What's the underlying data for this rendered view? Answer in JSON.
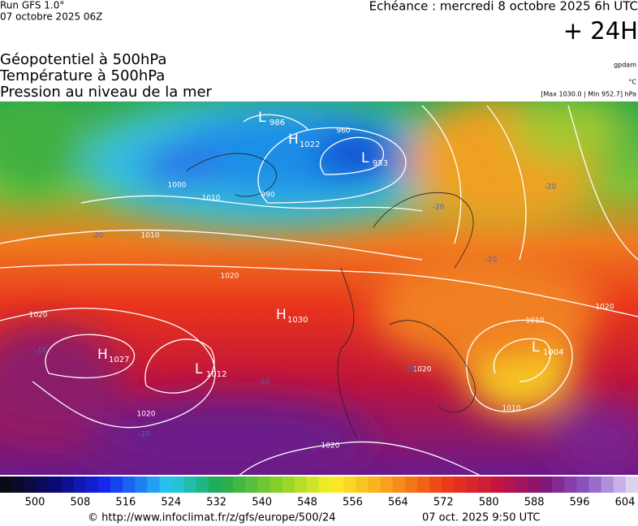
{
  "header": {
    "run": "Run GFS 1.0°",
    "date": "07 octobre 2025 06Z",
    "echeance": "Echéance : mercredi 8 octobre 2025 6h UTC",
    "lead": "+ 24H"
  },
  "fields": [
    "Géopotentiel à 500hPa",
    "Température à 500hPa",
    "Pression au niveau de la mer"
  ],
  "units": {
    "geopotential": "gpdam",
    "temperature": "°C",
    "pressure": "[Max 1030.0 | Min 952.7] hPa"
  },
  "pressure_centers": [
    {
      "kind": "L",
      "value": 986
    },
    {
      "kind": "H",
      "value": 1022
    },
    {
      "kind": "L",
      "value": 953
    },
    {
      "kind": "H",
      "value": 1030
    },
    {
      "kind": "H",
      "value": 1027
    },
    {
      "kind": "L",
      "value": 1012
    },
    {
      "kind": "L",
      "value": 1004
    }
  ],
  "isobar_labels": [
    1020,
    1020,
    1020,
    1020,
    1020,
    1010,
    1010,
    1010,
    1000,
    990,
    960,
    1010,
    1020
  ],
  "temperature_labels": [
    -10,
    -10,
    -10,
    -20,
    -20,
    -20,
    -20,
    -10
  ],
  "colorbar_ticks": [
    500,
    508,
    516,
    524,
    532,
    540,
    548,
    556,
    564,
    572,
    580,
    588,
    596,
    604
  ],
  "footer": {
    "source": "© http://www.infoclimat.fr/z/gfs/europe/500/24",
    "stamp": "07 oct. 2025  9:50 UTC"
  }
}
